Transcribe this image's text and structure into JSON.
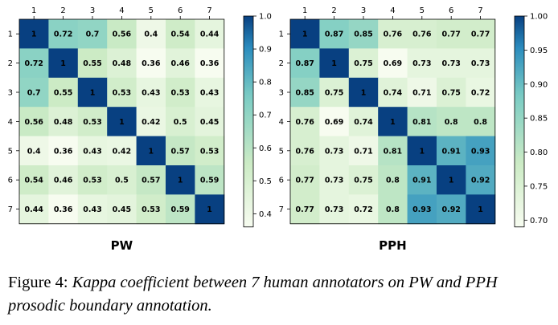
{
  "caption": {
    "label": "Figure 4:",
    "text": "Kappa coefficient between 7 human annotators on PW and PPH prosodic boundary annotation."
  },
  "colors": {
    "low": "#f7fcf0",
    "mid1": "#ccebc5",
    "mid2": "#7bccc4",
    "mid3": "#2b8cbe",
    "high": "#084081"
  },
  "chart_data": [
    {
      "type": "heatmap",
      "title": "PW",
      "x_ticks": [
        "1",
        "2",
        "3",
        "4",
        "5",
        "6",
        "7"
      ],
      "y_ticks": [
        "1",
        "2",
        "3",
        "4",
        "5",
        "6",
        "7"
      ],
      "values": [
        [
          1,
          0.72,
          0.7,
          0.56,
          0.4,
          0.54,
          0.44
        ],
        [
          0.72,
          1,
          0.55,
          0.48,
          0.36,
          0.46,
          0.36
        ],
        [
          0.7,
          0.55,
          1,
          0.53,
          0.43,
          0.53,
          0.43
        ],
        [
          0.56,
          0.48,
          0.53,
          1,
          0.42,
          0.5,
          0.45
        ],
        [
          0.4,
          0.36,
          0.43,
          0.42,
          1,
          0.57,
          0.53
        ],
        [
          0.54,
          0.46,
          0.53,
          0.5,
          0.57,
          1,
          0.59
        ],
        [
          0.44,
          0.36,
          0.43,
          0.45,
          0.53,
          0.59,
          1
        ]
      ],
      "color_range": [
        0.36,
        1.0
      ],
      "colorbar_ticks": [
        "1.0",
        "0.9",
        "0.8",
        "0.7",
        "0.6",
        "0.5",
        "0.4"
      ]
    },
    {
      "type": "heatmap",
      "title": "PPH",
      "x_ticks": [
        "1",
        "2",
        "3",
        "4",
        "5",
        "6",
        "7"
      ],
      "y_ticks": [
        "1",
        "2",
        "3",
        "4",
        "5",
        "6",
        "7"
      ],
      "values": [
        [
          1,
          0.87,
          0.85,
          0.76,
          0.76,
          0.77,
          0.77
        ],
        [
          0.87,
          1,
          0.75,
          0.69,
          0.73,
          0.73,
          0.73
        ],
        [
          0.85,
          0.75,
          1,
          0.74,
          0.71,
          0.75,
          0.72
        ],
        [
          0.76,
          0.69,
          0.74,
          1,
          0.81,
          0.8,
          0.8
        ],
        [
          0.76,
          0.73,
          0.71,
          0.81,
          1,
          0.91,
          0.93
        ],
        [
          0.77,
          0.73,
          0.75,
          0.8,
          0.91,
          1,
          0.92
        ],
        [
          0.77,
          0.73,
          0.72,
          0.8,
          0.93,
          0.92,
          1
        ]
      ],
      "color_range": [
        0.69,
        1.0
      ],
      "colorbar_ticks": [
        "1.00",
        "0.95",
        "0.90",
        "0.85",
        "0.80",
        "0.75",
        "0.70"
      ]
    }
  ]
}
